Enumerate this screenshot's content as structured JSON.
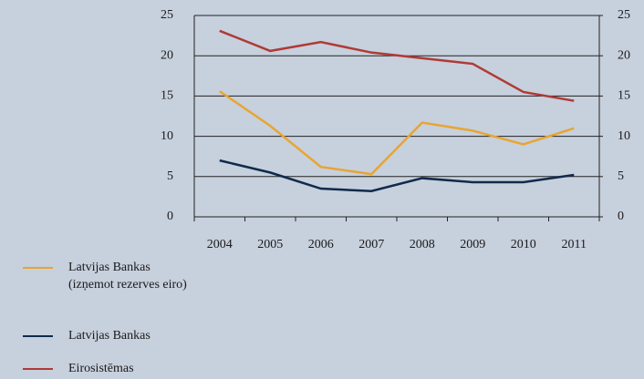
{
  "chart_data": {
    "type": "line",
    "categories": [
      "2004",
      "2005",
      "2006",
      "2007",
      "2008",
      "2009",
      "2010",
      "2011"
    ],
    "series": [
      {
        "name": "Latvijas Bankas\n(izņemot rezerves eiro)",
        "color": "#e8a531",
        "values": [
          15.6,
          11.3,
          6.2,
          5.3,
          11.7,
          10.7,
          9.0,
          11.0
        ]
      },
      {
        "name": "Latvijas Bankas",
        "color": "#102a4c",
        "values": [
          7.0,
          5.5,
          3.5,
          3.2,
          4.8,
          4.3,
          4.3,
          5.2
        ]
      },
      {
        "name": "Eirosistēmas",
        "color": "#b03a36",
        "values": [
          23.1,
          20.6,
          21.7,
          20.4,
          19.7,
          19.0,
          15.5,
          14.4
        ]
      }
    ],
    "ylim": [
      0,
      25
    ],
    "yticks": [
      0,
      5,
      10,
      15,
      20,
      25
    ],
    "y2lim": [
      0,
      25
    ],
    "y2ticks": [
      0,
      5,
      10,
      15,
      20,
      25
    ],
    "grid": true
  }
}
